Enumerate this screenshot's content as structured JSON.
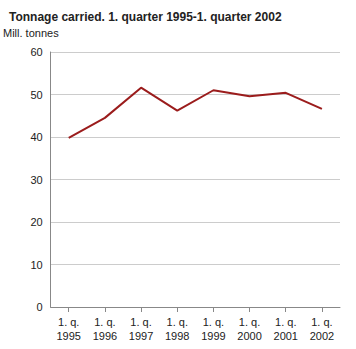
{
  "chart_data": {
    "type": "line",
    "title": "Tonnage carried. 1. quarter 1995-1. quarter 2002",
    "y_label": "Mill. tonnes",
    "categories": [
      "1. q.\n1995",
      "1. q.\n1996",
      "1. q.\n1997",
      "1. q.\n1998",
      "1. q.\n1999",
      "1. q.\n2000",
      "1. q.\n2001",
      "1. q.\n2002"
    ],
    "values": [
      39.8,
      44.5,
      51.6,
      46.2,
      51.0,
      49.6,
      50.4,
      46.6
    ],
    "color": "#9b1c1c",
    "ylim": [
      0,
      60
    ],
    "yticks": [
      0,
      10,
      20,
      30,
      40,
      50,
      60
    ],
    "grid": true
  }
}
